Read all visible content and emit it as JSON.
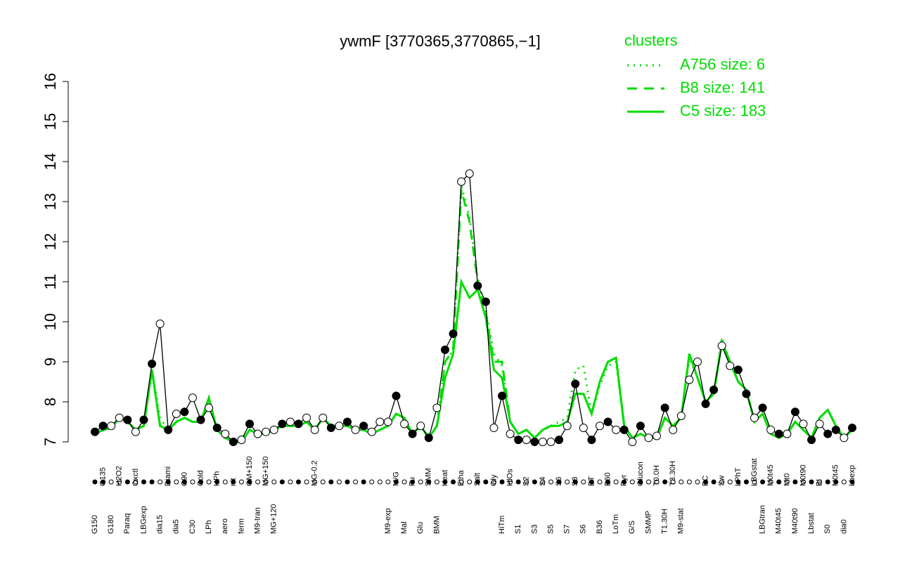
{
  "chart_data": {
    "type": "line",
    "title": "ywmF [3770365,3770865,−1]",
    "legend_title": "clusters",
    "legend_position": "top-right",
    "ylim": [
      7,
      16
    ],
    "yticks": [
      7,
      8,
      9,
      10,
      11,
      12,
      13,
      14,
      15,
      16
    ],
    "categories": [
      "G150",
      "G135",
      "G180",
      "H2O2",
      "Paraq",
      "Oxctl",
      "LBGexp",
      null,
      "dia15",
      "Diami",
      "dia5",
      "C90",
      "C30",
      "Cold",
      "LPh",
      "HPh",
      "aero",
      "nit",
      "ferm",
      "GM+150",
      "M9-tran",
      "MG+150",
      "MG+120",
      null,
      null,
      null,
      null,
      "MG-0.2",
      null,
      null,
      null,
      null,
      null,
      null,
      null,
      null,
      "M9-exp",
      "M/G",
      "Mal",
      "Fu",
      "Glu",
      "SMM",
      "BMM",
      "Heat",
      null,
      "Etha",
      null,
      "Salt",
      null,
      "Gly",
      "HiTm",
      "HlOs",
      "S1",
      "S2",
      "S3",
      "S4",
      "S5",
      "S6",
      "S7",
      "S8",
      "S6",
      "BT",
      "B36",
      "B60",
      "LoTm",
      "Pyr",
      "G/S",
      "Glucon",
      "SMMP",
      "T0.0H",
      "T1.30H",
      "T3.30H",
      "M9-stat",
      null,
      null,
      "BC",
      null,
      "Sw",
      null,
      "LPhT",
      null,
      "LBGstat",
      "LBGtran",
      "M0t45",
      "M40t45",
      "Mt0",
      "M40t90",
      "M0t90",
      "Lbstat",
      "Bl",
      "S0",
      "M0t45",
      "dia0",
      "Lbexp"
    ],
    "values": [
      7.25,
      7.4,
      7.4,
      7.6,
      7.55,
      7.25,
      7.55,
      8.95,
      9.95,
      7.3,
      7.7,
      7.75,
      8.1,
      7.55,
      7.85,
      7.35,
      7.2,
      7.0,
      7.05,
      7.45,
      7.2,
      7.25,
      7.3,
      7.45,
      7.5,
      7.45,
      7.6,
      7.3,
      7.6,
      7.35,
      7.4,
      7.5,
      7.3,
      7.4,
      7.25,
      7.5,
      7.5,
      8.15,
      7.45,
      7.2,
      7.4,
      7.1,
      7.85,
      9.3,
      9.7,
      13.5,
      13.7,
      10.9,
      10.5,
      7.35,
      8.15,
      7.2,
      7.05,
      7.05,
      7.0,
      7.0,
      7.0,
      7.05,
      7.4,
      8.45,
      7.35,
      7.05,
      7.4,
      7.5,
      7.3,
      7.3,
      7.0,
      7.4,
      7.1,
      7.15,
      7.85,
      7.3,
      7.65,
      8.55,
      9.0,
      7.95,
      8.3,
      9.4,
      8.9,
      8.8,
      8.2,
      7.6,
      7.85,
      7.3,
      7.2,
      7.2,
      7.75,
      7.45,
      7.05,
      7.45,
      7.2,
      7.3,
      7.1,
      7.35
    ],
    "filled": [
      true,
      true,
      false,
      false,
      true,
      false,
      true,
      true,
      false,
      true,
      false,
      true,
      false,
      true,
      false,
      true,
      false,
      true,
      false,
      true,
      false,
      false,
      false,
      true,
      false,
      true,
      false,
      false,
      false,
      true,
      false,
      true,
      false,
      true,
      false,
      false,
      false,
      true,
      false,
      true,
      false,
      true,
      false,
      true,
      true,
      false,
      false,
      true,
      true,
      false,
      true,
      false,
      true,
      false,
      true,
      false,
      false,
      true,
      false,
      true,
      false,
      true,
      false,
      true,
      false,
      true,
      false,
      true,
      false,
      false,
      true,
      false,
      false,
      false,
      false,
      true,
      true,
      false,
      false,
      true,
      true,
      false,
      true,
      false,
      true,
      false,
      true,
      false,
      true,
      false,
      true,
      true,
      false,
      true
    ],
    "color": "#000000",
    "series": [
      {
        "name": "A756 size: 6",
        "color": "#00dd00",
        "dash": "dotted",
        "values": [
          7.2,
          7.3,
          7.35,
          7.6,
          7.5,
          7.3,
          7.4,
          8.8,
          7.6,
          7.3,
          7.5,
          7.6,
          7.5,
          7.5,
          8.0,
          7.3,
          7.1,
          7.0,
          7.0,
          7.3,
          7.2,
          7.2,
          7.3,
          7.4,
          7.4,
          7.4,
          7.5,
          7.3,
          7.6,
          7.4,
          7.4,
          7.4,
          7.3,
          7.3,
          7.2,
          7.3,
          7.4,
          7.7,
          7.6,
          7.2,
          7.4,
          7.1,
          7.4,
          9.0,
          9.3,
          13.4,
          12.6,
          11.1,
          10.3,
          9.2,
          8.9,
          7.5,
          7.2,
          7.3,
          7.1,
          7.3,
          7.4,
          7.5,
          7.6,
          8.8,
          8.9,
          7.7,
          8.4,
          8.9,
          9.0,
          7.4,
          7.1,
          7.2,
          7.1,
          7.1,
          7.6,
          7.4,
          7.6,
          9.1,
          8.6,
          8.0,
          8.2,
          9.6,
          9.0,
          8.5,
          8.3,
          7.5,
          7.7,
          7.2,
          7.1,
          7.2,
          7.5,
          7.3,
          7.1,
          7.6,
          7.8,
          7.4,
          7.1,
          7.3
        ]
      },
      {
        "name": "B8 size: 141",
        "color": "#00dd00",
        "dash": "dashed",
        "values": [
          7.2,
          7.3,
          7.35,
          7.6,
          7.5,
          7.3,
          7.4,
          8.8,
          7.4,
          7.3,
          7.5,
          7.6,
          7.5,
          7.5,
          8.1,
          7.3,
          7.1,
          7.0,
          7.0,
          7.3,
          7.2,
          7.2,
          7.3,
          7.4,
          7.4,
          7.4,
          7.5,
          7.3,
          7.6,
          7.4,
          7.4,
          7.4,
          7.3,
          7.3,
          7.2,
          7.3,
          7.4,
          7.7,
          7.6,
          7.2,
          7.4,
          7.1,
          7.4,
          9.0,
          9.3,
          13.3,
          12.5,
          11.0,
          10.2,
          9.0,
          9.0,
          7.5,
          7.2,
          7.3,
          7.1,
          7.3,
          7.4,
          7.4,
          7.5,
          8.2,
          8.2,
          7.7,
          8.5,
          9.0,
          9.1,
          7.4,
          7.1,
          7.2,
          7.1,
          7.1,
          7.6,
          7.4,
          7.6,
          9.2,
          8.6,
          8.0,
          8.2,
          9.5,
          9.0,
          8.5,
          8.3,
          7.5,
          7.7,
          7.2,
          7.1,
          7.2,
          7.5,
          7.3,
          7.1,
          7.6,
          7.8,
          7.4,
          7.1,
          7.3
        ]
      },
      {
        "name": "C5 size: 183",
        "color": "#00dd00",
        "dash": "solid",
        "values": [
          7.2,
          7.3,
          7.35,
          7.6,
          7.5,
          7.3,
          7.4,
          8.8,
          7.4,
          7.3,
          7.5,
          7.6,
          7.5,
          7.5,
          8.1,
          7.3,
          7.1,
          7.0,
          7.0,
          7.3,
          7.2,
          7.2,
          7.3,
          7.4,
          7.4,
          7.4,
          7.5,
          7.3,
          7.6,
          7.4,
          7.4,
          7.4,
          7.3,
          7.3,
          7.2,
          7.3,
          7.4,
          7.7,
          7.6,
          7.2,
          7.4,
          7.1,
          7.4,
          8.6,
          9.2,
          11.0,
          10.6,
          10.8,
          10.1,
          8.8,
          8.6,
          7.5,
          7.2,
          7.3,
          7.1,
          7.3,
          7.4,
          7.4,
          7.5,
          8.2,
          8.2,
          7.7,
          8.5,
          9.0,
          9.1,
          7.4,
          7.1,
          7.2,
          7.1,
          7.1,
          7.6,
          7.4,
          7.6,
          9.2,
          8.6,
          8.0,
          8.2,
          9.5,
          9.0,
          8.5,
          8.3,
          7.5,
          7.7,
          7.2,
          7.1,
          7.2,
          7.5,
          7.3,
          7.1,
          7.6,
          7.8,
          7.4,
          7.1,
          7.3
        ]
      }
    ]
  }
}
